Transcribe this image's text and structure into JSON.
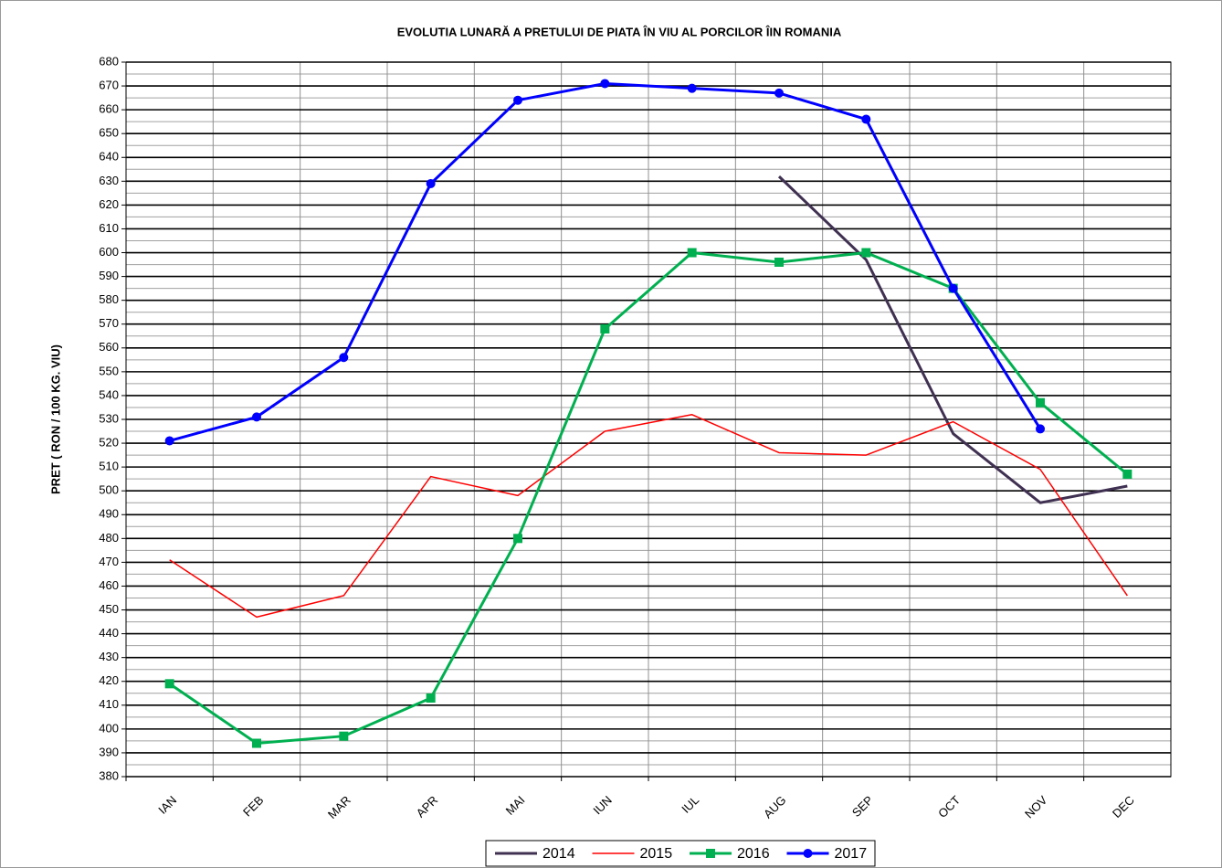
{
  "chart_data": {
    "type": "line",
    "title": "EVOLUTIA LUNARĂ A PRETULUI  DE PIATA ÎN VIU AL PORCILOR ÎIN ROMANIA",
    "y_label": "PRET ( RON / 100 KG. VIU)",
    "categories": [
      "IAN",
      "FEB",
      "MAR",
      "APR",
      "MAI",
      "IUN",
      "IUL",
      "AUG",
      "SEP",
      "OCT",
      "NOV",
      "DEC"
    ],
    "series": [
      {
        "name": "2014",
        "color": "#403152",
        "marker": "none",
        "line_width": 3,
        "values": [
          null,
          null,
          null,
          null,
          null,
          null,
          null,
          632,
          597,
          524,
          495,
          502
        ]
      },
      {
        "name": "2015",
        "color": "#ff0000",
        "marker": "none",
        "line_width": 1.5,
        "values": [
          471,
          447,
          456,
          506,
          498,
          525,
          532,
          516,
          515,
          529,
          509,
          456
        ]
      },
      {
        "name": "2016",
        "color": "#00b050",
        "marker": "square",
        "line_width": 3,
        "values": [
          419,
          394,
          397,
          413,
          480,
          568,
          600,
          596,
          600,
          585,
          537,
          507
        ]
      },
      {
        "name": "2017",
        "color": "#0000ff",
        "marker": "circle",
        "line_width": 3,
        "values": [
          521,
          531,
          556,
          629,
          664,
          671,
          669,
          667,
          656,
          585,
          526,
          null
        ]
      }
    ],
    "ylim": [
      380,
      680
    ],
    "yticks": [
      380,
      390,
      400,
      410,
      420,
      430,
      440,
      450,
      460,
      470,
      480,
      490,
      500,
      510,
      520,
      530,
      540,
      550,
      560,
      570,
      580,
      590,
      600,
      610,
      620,
      630,
      640,
      650,
      660,
      670,
      680
    ],
    "grid": true,
    "legend": "bottom"
  }
}
